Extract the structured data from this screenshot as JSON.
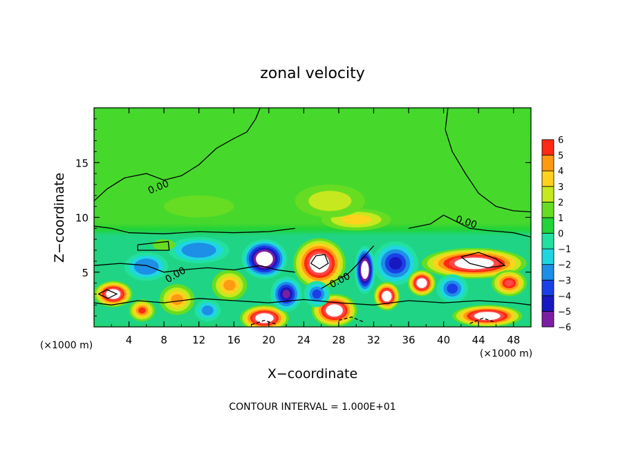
{
  "chart_data": {
    "type": "heatmap",
    "title": "zonal velocity",
    "xlabel": "X−coordinate",
    "ylabel": "Z−coordinate",
    "x_unit_left": "(×1000 m)",
    "x_unit_right": "(×1000 m)",
    "footer": "CONTOUR INTERVAL = 1.000E+01",
    "xlim": [
      0,
      50
    ],
    "ylim": [
      0,
      20
    ],
    "x_ticks": [
      4,
      8,
      12,
      16,
      20,
      24,
      28,
      32,
      36,
      40,
      44,
      48
    ],
    "y_ticks": [
      5,
      10,
      15
    ],
    "contour_labels": [
      {
        "text": "0.00",
        "x": 7.5,
        "y": 12.5,
        "angle": -22
      },
      {
        "text": "0.00",
        "x": 9.5,
        "y": 4.5,
        "angle": -30
      },
      {
        "text": "0.00",
        "x": 28.3,
        "y": 4.0,
        "angle": -28
      },
      {
        "text": "0.00",
        "x": 42.5,
        "y": 9.3,
        "angle": 18
      }
    ],
    "colorbar": {
      "levels": [
        -6,
        -5,
        -4,
        -3,
        -2,
        -1,
        0,
        1,
        2,
        3,
        4,
        5,
        6
      ],
      "colors": [
        "#7b1fa2",
        "#1818c0",
        "#1b3fe6",
        "#1d8fe6",
        "#1fd6e0",
        "#22e0a0",
        "#22d33a",
        "#66dd22",
        "#c6e81e",
        "#ffd21e",
        "#ff9a12",
        "#ff2a14",
        "#ff4848",
        "#f7a0a0"
      ]
    },
    "field_blobs": [
      {
        "x": 25.8,
        "y": 5.8,
        "rx": 3.0,
        "ry": 2.3,
        "v": 9
      },
      {
        "x": 19.5,
        "y": 6.2,
        "rx": 2.6,
        "ry": 1.8,
        "v": -9
      },
      {
        "x": 12.0,
        "y": 7.0,
        "rx": 3.5,
        "ry": 1.2,
        "v": -3.5
      },
      {
        "x": 6.0,
        "y": 5.5,
        "rx": 2.5,
        "ry": 1.3,
        "v": -3.5
      },
      {
        "x": 43.5,
        "y": 5.8,
        "rx": 6.0,
        "ry": 1.4,
        "v": 9
      },
      {
        "x": 34.5,
        "y": 5.8,
        "rx": 2.6,
        "ry": 2.0,
        "v": -5
      },
      {
        "x": 31.0,
        "y": 5.2,
        "rx": 1.2,
        "ry": 2.2,
        "v": -9
      },
      {
        "x": 2.2,
        "y": 3.0,
        "rx": 2.2,
        "ry": 1.2,
        "v": 9
      },
      {
        "x": 37.5,
        "y": 4.0,
        "rx": 1.6,
        "ry": 1.2,
        "v": 9
      },
      {
        "x": 33.5,
        "y": 2.8,
        "rx": 1.5,
        "ry": 1.3,
        "v": 9
      },
      {
        "x": 19.5,
        "y": 0.8,
        "rx": 2.8,
        "ry": 1.2,
        "v": 9
      },
      {
        "x": 27.5,
        "y": 1.5,
        "rx": 2.6,
        "ry": 1.5,
        "v": 9
      },
      {
        "x": 45.0,
        "y": 1.0,
        "rx": 4.0,
        "ry": 1.0,
        "v": 9
      },
      {
        "x": 22.0,
        "y": 3.0,
        "rx": 1.8,
        "ry": 1.6,
        "v": -6
      },
      {
        "x": 41.0,
        "y": 3.5,
        "rx": 1.8,
        "ry": 1.3,
        "v": -4
      },
      {
        "x": 15.5,
        "y": 3.8,
        "rx": 2.0,
        "ry": 1.4,
        "v": 4
      },
      {
        "x": 9.5,
        "y": 2.5,
        "rx": 2.0,
        "ry": 1.4,
        "v": 4
      },
      {
        "x": 13.0,
        "y": 1.5,
        "rx": 1.5,
        "ry": 1.0,
        "v": -3
      },
      {
        "x": 5.5,
        "y": 1.5,
        "rx": 1.5,
        "ry": 1.0,
        "v": 5
      },
      {
        "x": 25.5,
        "y": 3.0,
        "rx": 1.5,
        "ry": 1.2,
        "v": -4
      },
      {
        "x": 47.5,
        "y": 4.0,
        "rx": 2.0,
        "ry": 1.2,
        "v": 6
      },
      {
        "x": 30.0,
        "y": 9.8,
        "rx": 4.0,
        "ry": 1.0,
        "v": 3
      },
      {
        "x": 27.0,
        "y": 11.5,
        "rx": 4.0,
        "ry": 1.5,
        "v": 1.3
      },
      {
        "x": 12.0,
        "y": 11.0,
        "rx": 4.0,
        "ry": 1.0,
        "v": 0.6
      },
      {
        "x": 8.0,
        "y": 7.5,
        "rx": 1.3,
        "ry": 0.5,
        "v": 0.8
      }
    ]
  }
}
